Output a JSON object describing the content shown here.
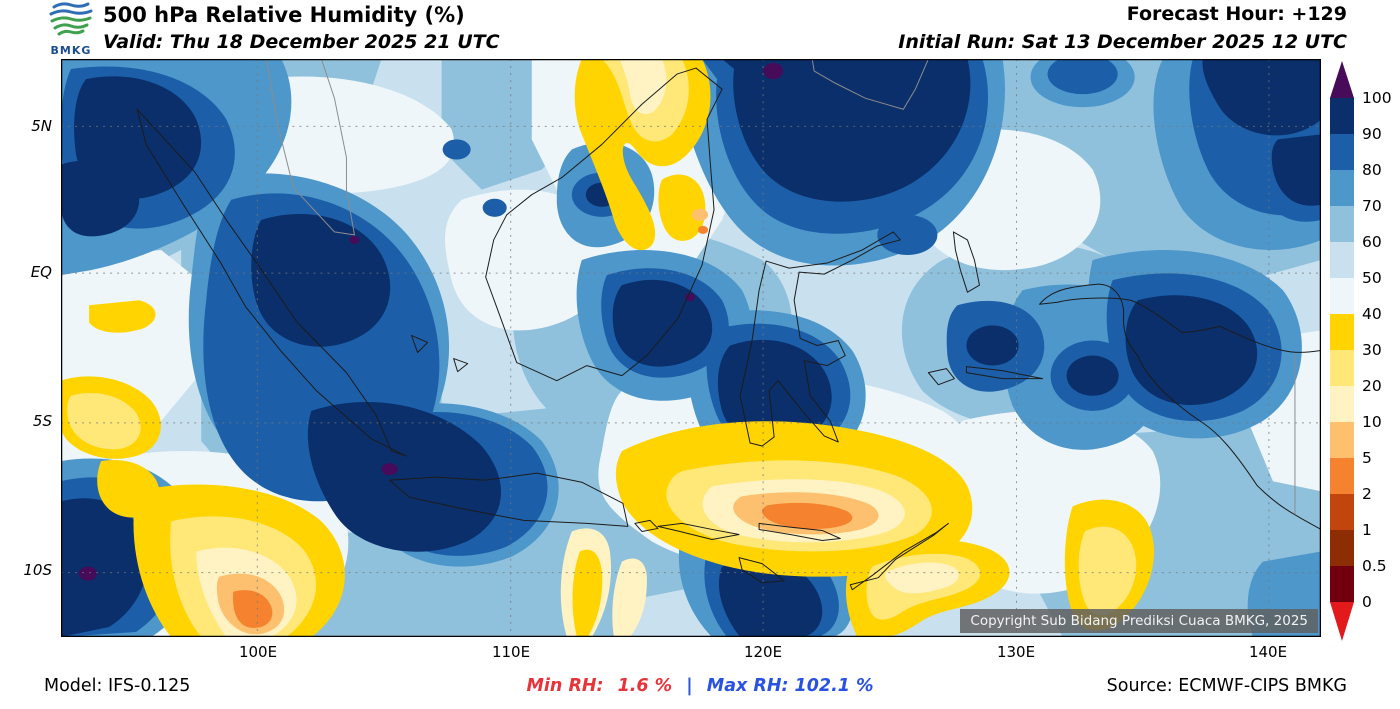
{
  "header": {
    "logo_text": "BMKG",
    "title": "500 hPa Relative Humidity (%)",
    "valid_line": "Valid: Thu 18 December 2025 21 UTC",
    "forecast_hour": "Forecast Hour: +129",
    "initial_run": "Initial Run: Sat 13 December 2025 12 UTC"
  },
  "map": {
    "lat_labels": [
      "5N",
      "EQ",
      "5S",
      "10S"
    ],
    "lon_labels": [
      "100E",
      "110E",
      "120E",
      "130E",
      "140E"
    ],
    "copyright": "Copyright Sub Bidang Prediksi Cuaca BMKG, 2025"
  },
  "colorbar": {
    "tick_labels": [
      "100",
      "90",
      "80",
      "70",
      "60",
      "50",
      "40",
      "30",
      "20",
      "10",
      "5",
      "2",
      "1",
      "0.5",
      "0"
    ],
    "colors_top_to_bottom": [
      "#470b59",
      "#0a2f6b",
      "#1c5fa8",
      "#4e97cb",
      "#8fc1dd",
      "#c9e1ef",
      "#eef6fa",
      "#ffd400",
      "#ffe878",
      "#fff3c4",
      "#fdc06e",
      "#f5822e",
      "#c3450e",
      "#8c2d04",
      "#70000d",
      "#e31a1c"
    ],
    "palette": {
      "100": "#470b59",
      "90": "#0a2f6b",
      "80": "#1c5fa8",
      "70": "#4e97cb",
      "60": "#8fc1dd",
      "50": "#c9e1ef",
      "40": "#eef6fa",
      "30": "#ffd400",
      "20": "#ffe878",
      "10": "#fff3c4",
      "5": "#fdc06e",
      "2": "#f5822e",
      "1": "#c3450e",
      "0.5": "#8c2d04",
      "0": "#70000d"
    }
  },
  "footer": {
    "model": "Model: IFS-0.125",
    "min_label": "Min RH:",
    "min_value": "1.6 %",
    "separator": "|",
    "max_label": "Max RH:",
    "max_value": "102.1 %",
    "source": "Source: ECMWF-CIPS BMKG",
    "min_color": "#e8333a",
    "max_color": "#2952e3"
  }
}
